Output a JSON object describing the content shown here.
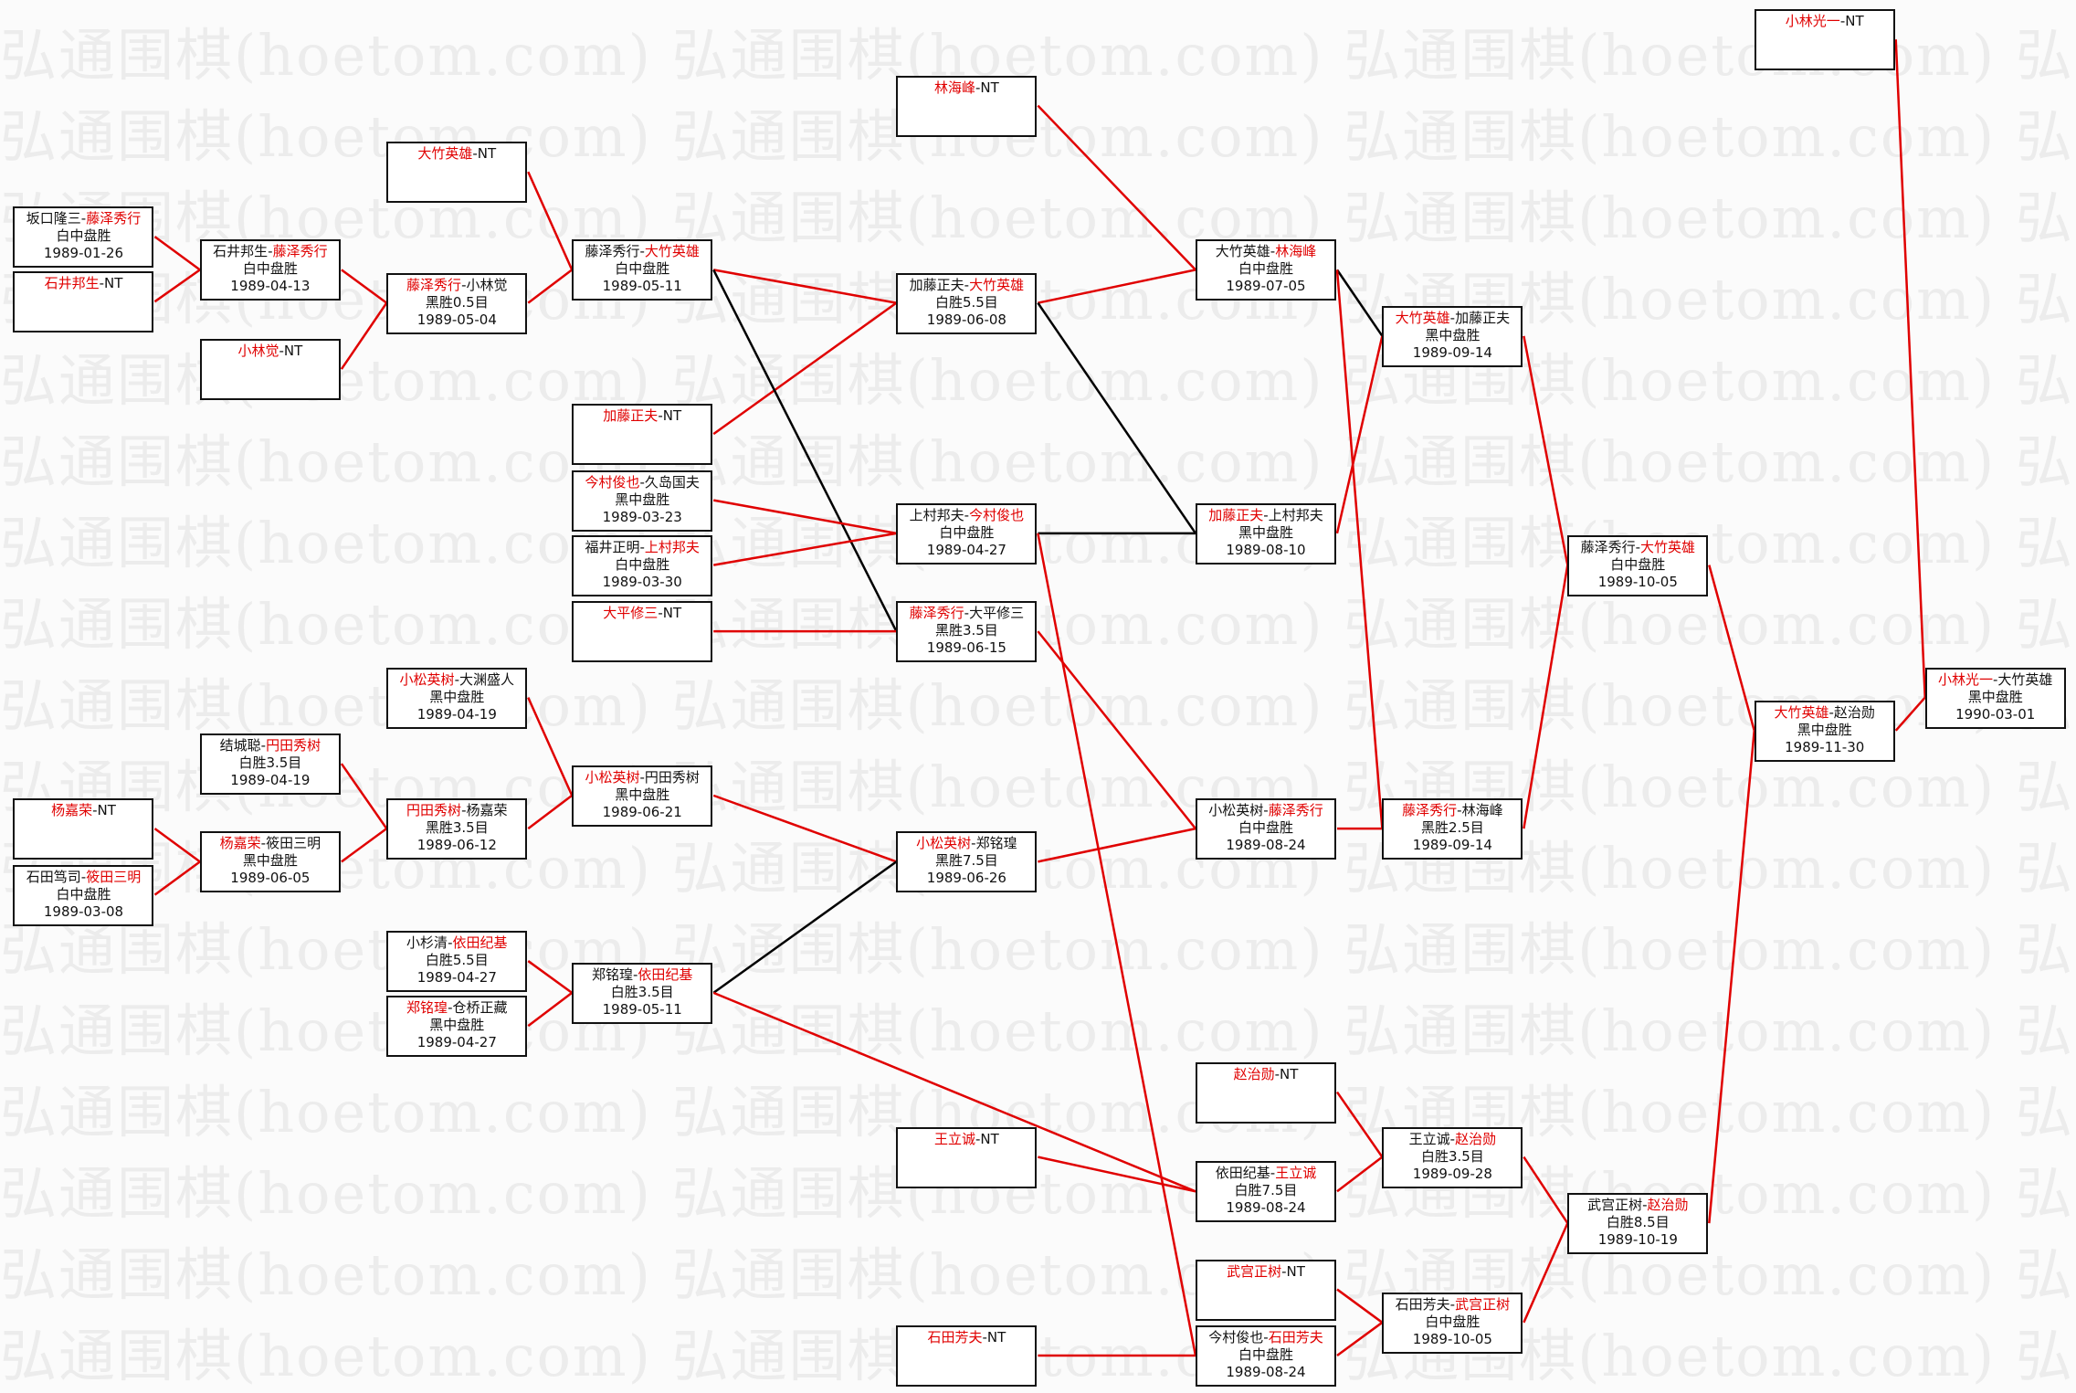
{
  "watermark": "弘通围棋(hoetom.com)",
  "separator": "-",
  "colors": {
    "winner": "#e00000",
    "win_line": "#e00000",
    "loss_line": "#000000",
    "border": "#111111"
  },
  "matches": [
    {
      "id": "A1",
      "p1": "坂口隆三",
      "p2": "藤泽秀行",
      "winner": 2,
      "result": "白中盘胜",
      "date": "1989-01-26"
    },
    {
      "id": "A2",
      "p1": "石井邦生",
      "p2": "NT",
      "winner": 1,
      "result": "",
      "date": ""
    },
    {
      "id": "A3",
      "p1": "石井邦生",
      "p2": "藤泽秀行",
      "winner": 2,
      "result": "白中盘胜",
      "date": "1989-04-13"
    },
    {
      "id": "A4",
      "p1": "小林觉",
      "p2": "NT",
      "winner": 1,
      "result": "",
      "date": ""
    },
    {
      "id": "A5",
      "p1": "大竹英雄",
      "p2": "NT",
      "winner": 1,
      "result": "",
      "date": ""
    },
    {
      "id": "A6",
      "p1": "藤泽秀行",
      "p2": "小林觉",
      "winner": 1,
      "result": "黑胜0.5目",
      "date": "1989-05-04"
    },
    {
      "id": "A7",
      "p1": "藤泽秀行",
      "p2": "大竹英雄",
      "winner": 2,
      "result": "白中盘胜",
      "date": "1989-05-11"
    },
    {
      "id": "A8",
      "p1": "加藤正夫",
      "p2": "NT",
      "winner": 1,
      "result": "",
      "date": ""
    },
    {
      "id": "A9",
      "p1": "今村俊也",
      "p2": "久岛国夫",
      "winner": 1,
      "result": "黑中盘胜",
      "date": "1989-03-23"
    },
    {
      "id": "A10",
      "p1": "福井正明",
      "p2": "上村邦夫",
      "winner": 2,
      "result": "白中盘胜",
      "date": "1989-03-30"
    },
    {
      "id": "A11",
      "p1": "大平修三",
      "p2": "NT",
      "winner": 1,
      "result": "",
      "date": ""
    },
    {
      "id": "A12",
      "p1": "林海峰",
      "p2": "NT",
      "winner": 1,
      "result": "",
      "date": ""
    },
    {
      "id": "A13",
      "p1": "加藤正夫",
      "p2": "大竹英雄",
      "winner": 2,
      "result": "白胜5.5目",
      "date": "1989-06-08"
    },
    {
      "id": "A14",
      "p1": "上村邦夫",
      "p2": "今村俊也",
      "winner": 2,
      "result": "白中盘胜",
      "date": "1989-04-27"
    },
    {
      "id": "A15",
      "p1": "藤泽秀行",
      "p2": "大平修三",
      "winner": 1,
      "result": "黑胜3.5目",
      "date": "1989-06-15"
    },
    {
      "id": "A16",
      "p1": "大竹英雄",
      "p2": "林海峰",
      "winner": 2,
      "result": "白中盘胜",
      "date": "1989-07-05"
    },
    {
      "id": "A17",
      "p1": "加藤正夫",
      "p2": "上村邦夫",
      "winner": 1,
      "result": "黑中盘胜",
      "date": "1989-08-10"
    },
    {
      "id": "A18",
      "p1": "大竹英雄",
      "p2": "加藤正夫",
      "winner": 1,
      "result": "黑中盘胜",
      "date": "1989-09-14"
    },
    {
      "id": "A19",
      "p1": "藤泽秀行",
      "p2": "大竹英雄",
      "winner": 2,
      "result": "白中盘胜",
      "date": "1989-10-05"
    },
    {
      "id": "A20",
      "p1": "小林光一",
      "p2": "NT",
      "winner": 1,
      "result": "",
      "date": ""
    },
    {
      "id": "A21",
      "p1": "大竹英雄",
      "p2": "赵治勋",
      "winner": 1,
      "result": "黑中盘胜",
      "date": "1989-11-30"
    },
    {
      "id": "A22",
      "p1": "小林光一",
      "p2": "大竹英雄",
      "winner": 1,
      "result": "黑中盘胜",
      "date": "1990-03-01"
    },
    {
      "id": "B1",
      "p1": "小松英树",
      "p2": "大渊盛人",
      "winner": 1,
      "result": "黑中盘胜",
      "date": "1989-04-19"
    },
    {
      "id": "B2",
      "p1": "结城聪",
      "p2": "円田秀树",
      "winner": 2,
      "result": "白胜3.5目",
      "date": "1989-04-19"
    },
    {
      "id": "B3",
      "p1": "杨嘉荣",
      "p2": "NT",
      "winner": 1,
      "result": "",
      "date": ""
    },
    {
      "id": "B4",
      "p1": "石田笃司",
      "p2": "筱田三明",
      "winner": 2,
      "result": "白中盘胜",
      "date": "1989-03-08"
    },
    {
      "id": "B5",
      "p1": "杨嘉荣",
      "p2": "筱田三明",
      "winner": 1,
      "result": "黑中盘胜",
      "date": "1989-06-05"
    },
    {
      "id": "B6",
      "p1": "円田秀树",
      "p2": "杨嘉荣",
      "winner": 1,
      "result": "黑胜3.5目",
      "date": "1989-06-12"
    },
    {
      "id": "B7",
      "p1": "小松英树",
      "p2": "円田秀树",
      "winner": 1,
      "result": "黑中盘胜",
      "date": "1989-06-21"
    },
    {
      "id": "B8",
      "p1": "小松英树",
      "p2": "郑铭瑝",
      "winner": 1,
      "result": "黑胜7.5目",
      "date": "1989-06-26"
    },
    {
      "id": "B9",
      "p1": "小松英树",
      "p2": "藤泽秀行",
      "winner": 2,
      "result": "白中盘胜",
      "date": "1989-08-24"
    },
    {
      "id": "B10",
      "p1": "藤泽秀行",
      "p2": "林海峰",
      "winner": 1,
      "result": "黑胜2.5目",
      "date": "1989-09-14"
    },
    {
      "id": "B11",
      "p1": "小杉清",
      "p2": "依田纪基",
      "winner": 2,
      "result": "白胜5.5目",
      "date": "1989-04-27"
    },
    {
      "id": "B12",
      "p1": "郑铭瑝",
      "p2": "仓桥正藏",
      "winner": 1,
      "result": "黑中盘胜",
      "date": "1989-04-27"
    },
    {
      "id": "B13",
      "p1": "郑铭瑝",
      "p2": "依田纪基",
      "winner": 2,
      "result": "白胜3.5目",
      "date": "1989-05-11"
    },
    {
      "id": "B14",
      "p1": "赵治勋",
      "p2": "NT",
      "winner": 1,
      "result": "",
      "date": ""
    },
    {
      "id": "B15",
      "p1": "王立诚",
      "p2": "NT",
      "winner": 1,
      "result": "",
      "date": ""
    },
    {
      "id": "B16",
      "p1": "依田纪基",
      "p2": "王立诚",
      "winner": 2,
      "result": "白胜7.5目",
      "date": "1989-08-24"
    },
    {
      "id": "B17",
      "p1": "王立诚",
      "p2": "赵治勋",
      "winner": 2,
      "result": "白胜3.5目",
      "date": "1989-09-28"
    },
    {
      "id": "B18",
      "p1": "武宫正树",
      "p2": "NT",
      "winner": 1,
      "result": "",
      "date": ""
    },
    {
      "id": "B19",
      "p1": "武宫正树",
      "p2": "赵治勋",
      "winner": 2,
      "result": "白胜8.5目",
      "date": "1989-10-19"
    },
    {
      "id": "B20",
      "p1": "石田芳夫",
      "p2": "武宫正树",
      "winner": 2,
      "result": "白中盘胜",
      "date": "1989-10-05"
    },
    {
      "id": "B21",
      "p1": "石田芳夫",
      "p2": "NT",
      "winner": 1,
      "result": "",
      "date": ""
    },
    {
      "id": "B22",
      "p1": "今村俊也",
      "p2": "石田芳夫",
      "winner": 2,
      "result": "白中盘胜",
      "date": "1989-08-24"
    }
  ],
  "edges": [
    {
      "from": "A1",
      "to": "A3",
      "win": true
    },
    {
      "from": "A2",
      "to": "A3",
      "win": true
    },
    {
      "from": "A3",
      "to": "A6",
      "win": true
    },
    {
      "from": "A4",
      "to": "A6",
      "win": true
    },
    {
      "from": "A5",
      "to": "A7",
      "win": true
    },
    {
      "from": "A6",
      "to": "A7",
      "win": true
    },
    {
      "from": "A7",
      "to": "A13",
      "win": true
    },
    {
      "from": "A8",
      "to": "A13",
      "win": true
    },
    {
      "from": "A7",
      "to": "A15",
      "win": false
    },
    {
      "from": "A9",
      "to": "A14",
      "win": true
    },
    {
      "from": "A10",
      "to": "A14",
      "win": true
    },
    {
      "from": "A11",
      "to": "A15",
      "win": true
    },
    {
      "from": "A12",
      "to": "A16",
      "win": true
    },
    {
      "from": "A13",
      "to": "A16",
      "win": true
    },
    {
      "from": "A13",
      "to": "A17",
      "win": false
    },
    {
      "from": "A14",
      "to": "A17",
      "win": false
    },
    {
      "from": "A14",
      "to": "B22",
      "win": true
    },
    {
      "from": "A15",
      "to": "B9",
      "win": true
    },
    {
      "from": "A16",
      "to": "A18",
      "win": false
    },
    {
      "from": "A17",
      "to": "A18",
      "win": true
    },
    {
      "from": "A16",
      "to": "B10",
      "win": true
    },
    {
      "from": "A18",
      "to": "A19",
      "win": true
    },
    {
      "from": "B10",
      "to": "A19",
      "win": true
    },
    {
      "from": "A19",
      "to": "A21",
      "win": true
    },
    {
      "from": "B19",
      "to": "A21",
      "win": true
    },
    {
      "from": "A20",
      "to": "A22",
      "win": true
    },
    {
      "from": "A21",
      "to": "A22",
      "win": true
    },
    {
      "from": "B3",
      "to": "B5",
      "win": true
    },
    {
      "from": "B4",
      "to": "B5",
      "win": true
    },
    {
      "from": "B2",
      "to": "B6",
      "win": true
    },
    {
      "from": "B5",
      "to": "B6",
      "win": true
    },
    {
      "from": "B1",
      "to": "B7",
      "win": true
    },
    {
      "from": "B6",
      "to": "B7",
      "win": true
    },
    {
      "from": "B7",
      "to": "B8",
      "win": true
    },
    {
      "from": "B13",
      "to": "B8",
      "win": false
    },
    {
      "from": "B8",
      "to": "B9",
      "win": true
    },
    {
      "from": "B9",
      "to": "B10",
      "win": true
    },
    {
      "from": "B11",
      "to": "B13",
      "win": true
    },
    {
      "from": "B12",
      "to": "B13",
      "win": true
    },
    {
      "from": "B13",
      "to": "B16",
      "win": true
    },
    {
      "from": "B15",
      "to": "B16",
      "win": true
    },
    {
      "from": "B14",
      "to": "B17",
      "win": true
    },
    {
      "from": "B16",
      "to": "B17",
      "win": true
    },
    {
      "from": "B18",
      "to": "B20",
      "win": true
    },
    {
      "from": "B22",
      "to": "B20",
      "win": true
    },
    {
      "from": "B21",
      "to": "B22",
      "win": true
    },
    {
      "from": "B17",
      "to": "B19",
      "win": true
    },
    {
      "from": "B20",
      "to": "B19",
      "win": true
    }
  ]
}
